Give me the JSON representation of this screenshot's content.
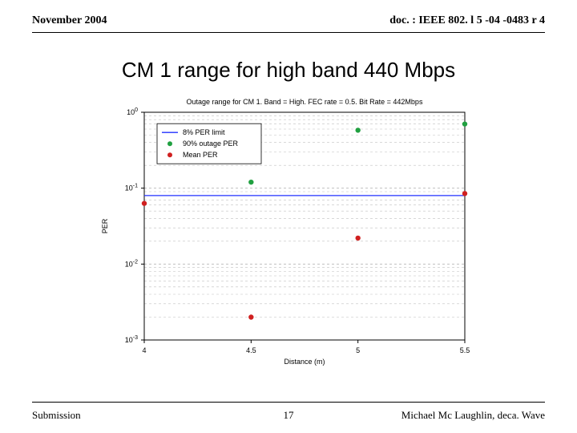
{
  "header": {
    "left": "November 2004",
    "right": "doc. : IEEE 802. l 5 -04 -0483 r 4"
  },
  "title": "CM 1 range for high band 440 Mbps",
  "footer": {
    "left": "Submission",
    "page": "17",
    "right": "Michael Mc Laughlin, deca. Wave"
  },
  "chart": {
    "type": "semilogy-scatter",
    "plot_title": "Outage range for CM 1. Band = High. FEC rate = 0.5. Bit Rate = 442Mbps",
    "title_fontsize": 9,
    "xlabel": "Distance (m)",
    "ylabel": "PER",
    "label_fontsize": 9,
    "tick_fontsize": 9,
    "background_color": "#ffffff",
    "axis_color": "#000000",
    "grid_color": "#c0c0c0",
    "grid_dash": "3,3",
    "x": {
      "min": 4,
      "max": 5.5,
      "ticks": [
        4,
        4.5,
        5,
        5.5
      ]
    },
    "y": {
      "log": true,
      "min_exp": -3,
      "max_exp": 0,
      "major_exps": [
        -3,
        -2,
        -1,
        0
      ]
    },
    "per_limit_line": {
      "value": 0.08,
      "color": "#2030ff",
      "width": 1.2
    },
    "legend": {
      "x": 4.06,
      "y_top_exp": -0.15,
      "border_color": "#000000",
      "bg": "#ffffff",
      "fontsize": 9,
      "items": [
        {
          "kind": "line",
          "color": "#2030ff",
          "label": "8% PER limit"
        },
        {
          "kind": "marker",
          "color": "#20a040",
          "label": "90% outage PER"
        },
        {
          "kind": "marker",
          "color": "#d02020",
          "label": "Mean PER"
        }
      ]
    },
    "series": [
      {
        "name": "90% outage PER",
        "color": "#20a040",
        "marker": "circle",
        "marker_size": 4,
        "points": [
          {
            "x": 4.5,
            "y": 0.12
          },
          {
            "x": 5.0,
            "y": 0.58
          },
          {
            "x": 5.5,
            "y": 0.7
          }
        ]
      },
      {
        "name": "Mean PER",
        "color": "#d02020",
        "marker": "circle",
        "marker_size": 4,
        "points": [
          {
            "x": 4.0,
            "y": 0.063
          },
          {
            "x": 4.5,
            "y": 0.002
          },
          {
            "x": 5.0,
            "y": 0.022
          },
          {
            "x": 5.5,
            "y": 0.085
          }
        ]
      }
    ]
  }
}
